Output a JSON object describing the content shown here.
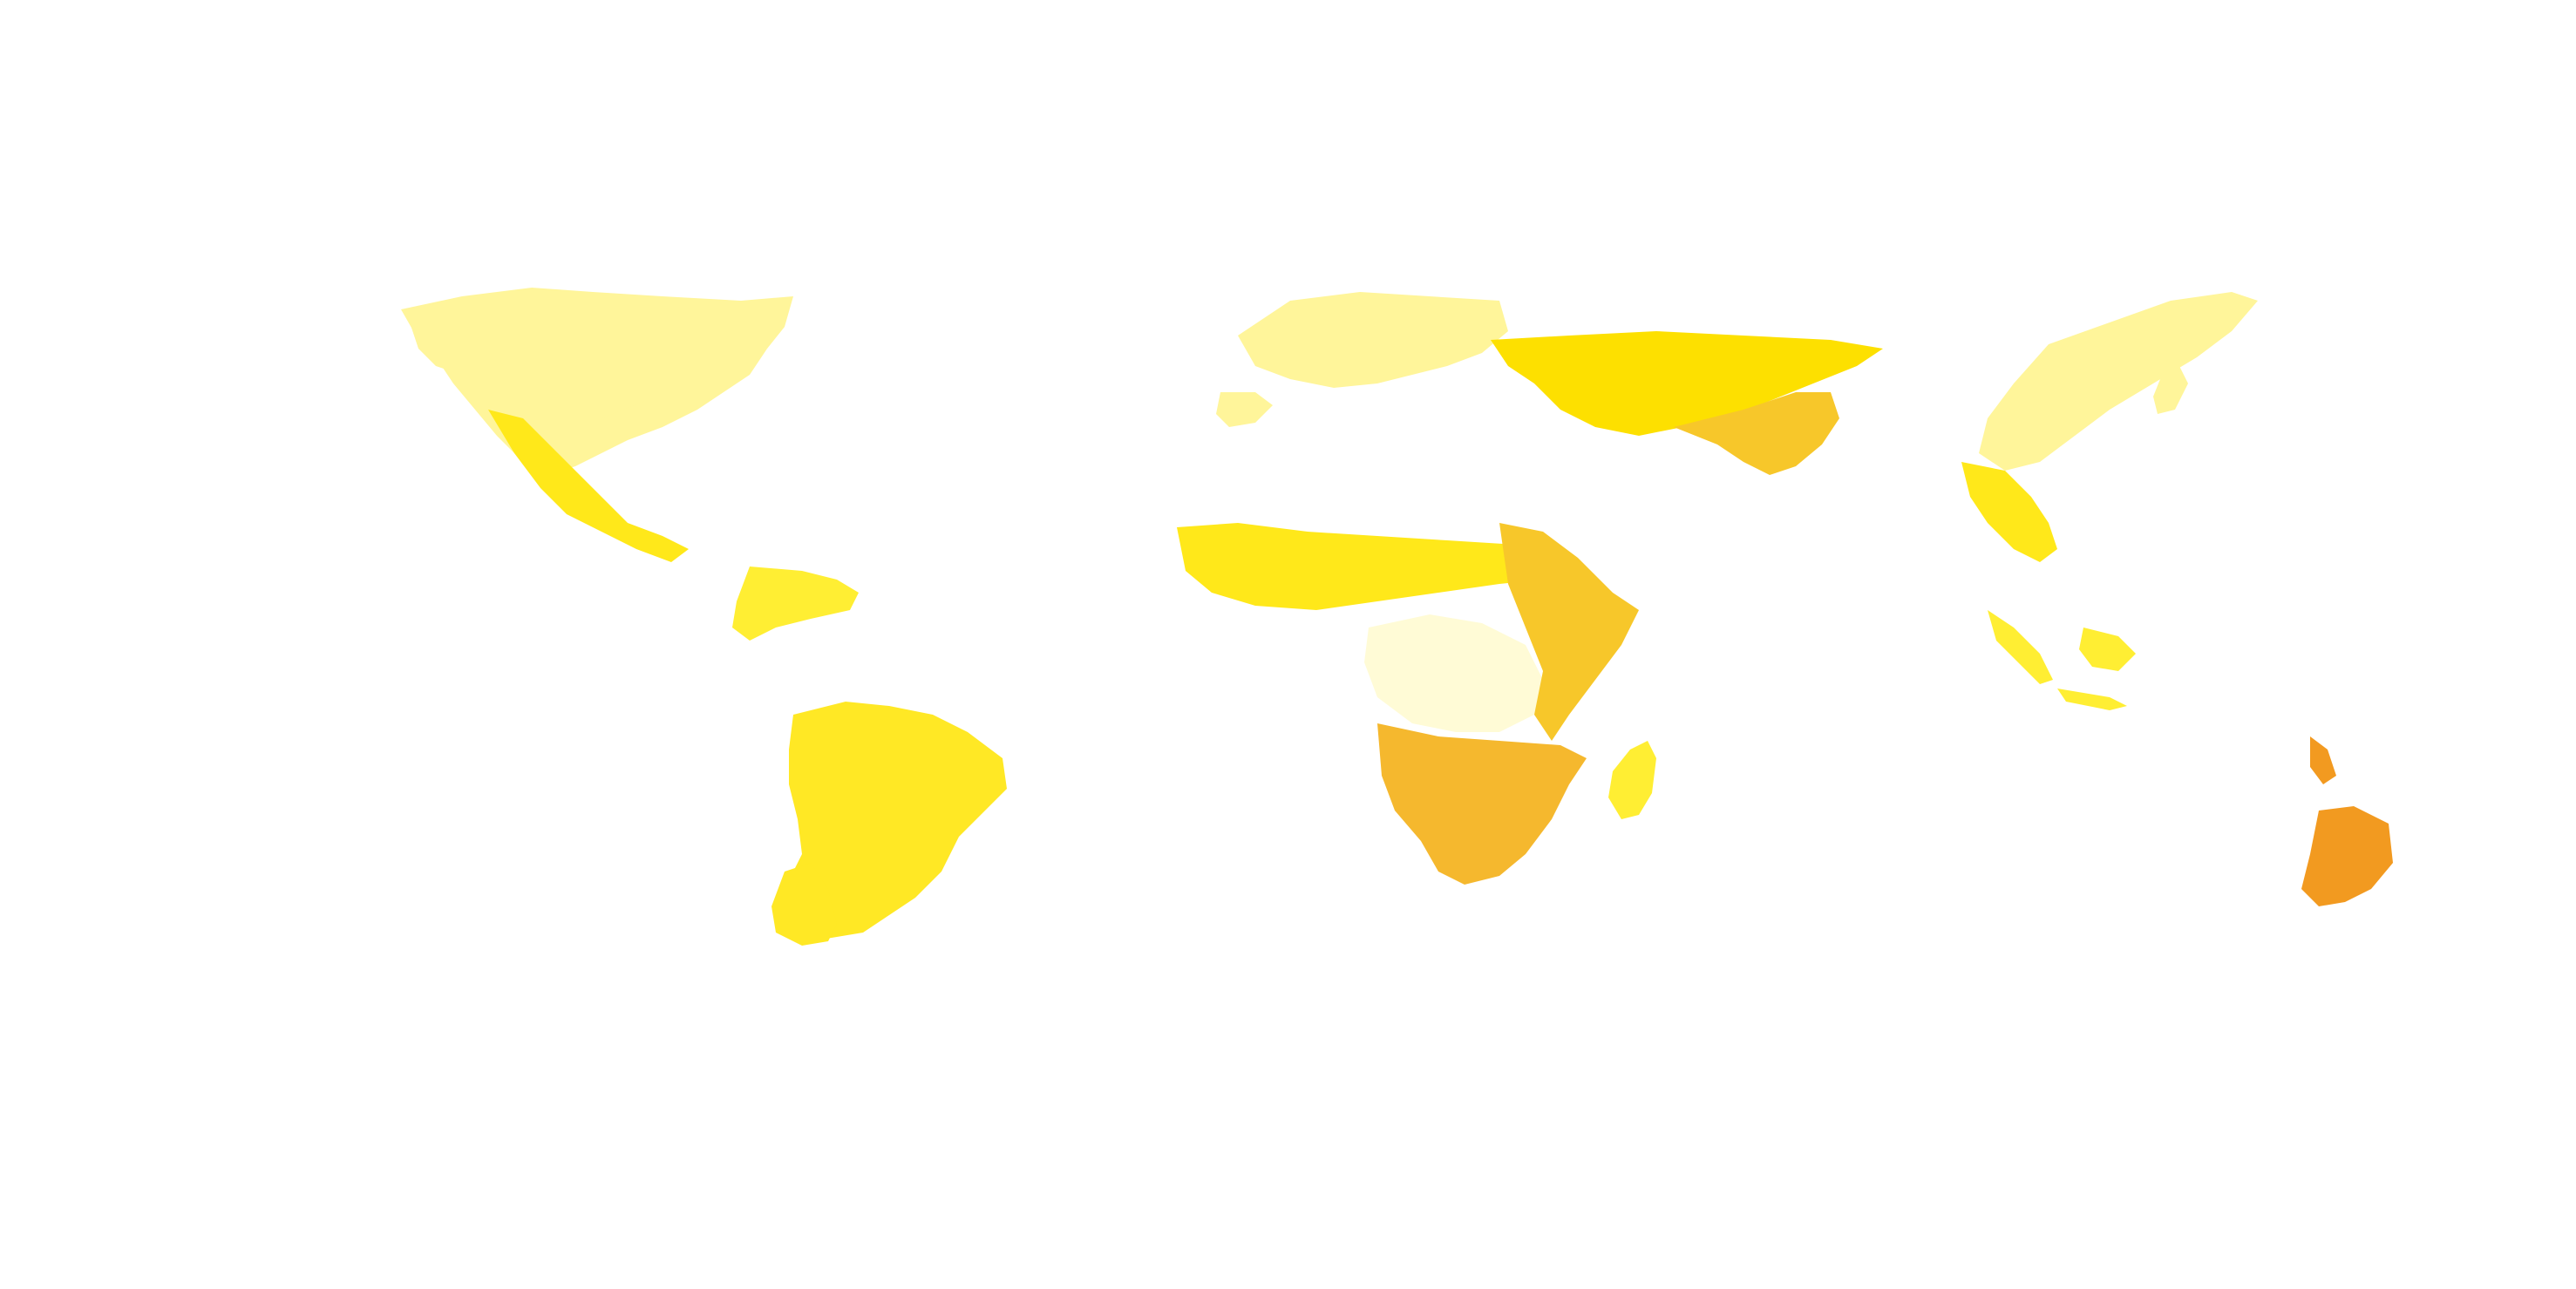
{
  "map": {
    "projection": "equirectangular",
    "background_color": "#ffffff",
    "legend": "none",
    "title": "",
    "color_scale": {
      "low": "#fffbd6",
      "mid_low": "#fff59a",
      "mid": "#ffee33",
      "mid_high": "#fde000",
      "high": "#f5b82e",
      "highest": "#f29a20"
    },
    "regions": [
      {
        "name": "north-america",
        "color": "#fff59a"
      },
      {
        "name": "alaska",
        "color": "#fff075"
      },
      {
        "name": "mexico-central-america",
        "color": "#ffe81a"
      },
      {
        "name": "caribbean",
        "color": "#ffee33"
      },
      {
        "name": "south-america",
        "color": "#ffe825"
      },
      {
        "name": "europe",
        "color": "#fff59a"
      },
      {
        "name": "russia",
        "color": "#fde000"
      },
      {
        "name": "west-africa-sahel",
        "color": "#ffe81a"
      },
      {
        "name": "central-africa",
        "color": "#fffbd6"
      },
      {
        "name": "east-africa",
        "color": "#f7c72a"
      },
      {
        "name": "southern-africa",
        "color": "#f5b82e"
      },
      {
        "name": "madagascar",
        "color": "#ffee33"
      },
      {
        "name": "central-asia",
        "color": "#f7c72a"
      },
      {
        "name": "east-asia",
        "color": "#fff59a"
      },
      {
        "name": "southeast-asia",
        "color": "#ffe81a"
      },
      {
        "name": "indonesia",
        "color": "#ffee33"
      },
      {
        "name": "australia",
        "color": "#f29a20"
      }
    ]
  }
}
